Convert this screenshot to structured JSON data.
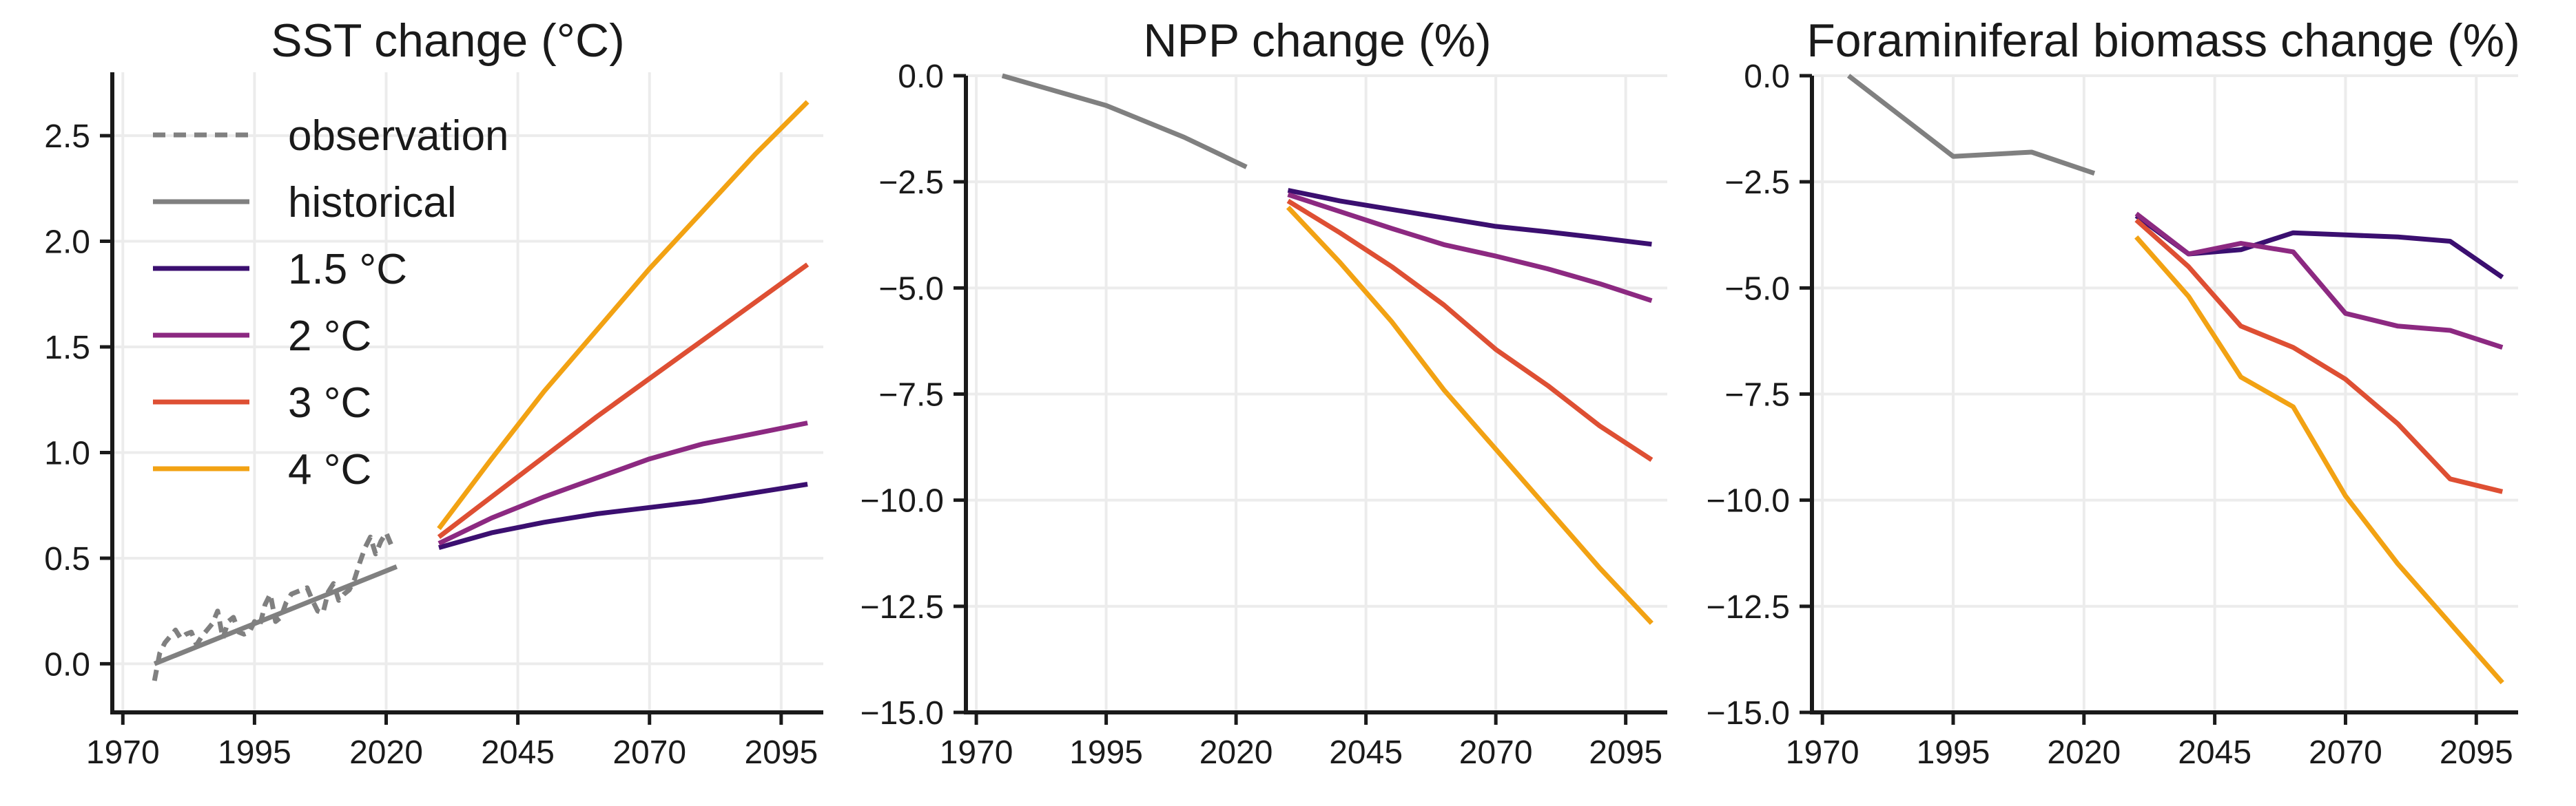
{
  "colors": {
    "observation": "#808080",
    "historical": "#808080",
    "s15": "#3b0f70",
    "s2": "#8c2981",
    "s3": "#de4f33",
    "s4": "#f2a213"
  },
  "legend": {
    "observation": "observation",
    "historical": "historical",
    "s15": "1.5 °C",
    "s2": "2 °C",
    "s3": "3 °C",
    "s4": "4 °C"
  },
  "chart_data": [
    {
      "type": "line",
      "title": "SST change (°C)",
      "xlabel": "",
      "ylabel": "",
      "xlim": [
        1968,
        2103
      ],
      "ylim": [
        -0.23,
        2.8
      ],
      "xticks": [
        1970,
        1995,
        2020,
        2045,
        2070,
        2095
      ],
      "yticks": [
        0.0,
        0.5,
        1.0,
        1.5,
        2.0,
        2.5
      ],
      "ytick_labels": [
        "0.0",
        "0.5",
        "1.0",
        "1.5",
        "2.0",
        "2.5"
      ],
      "grid": true,
      "legend_position": "top-left",
      "series": [
        {
          "name": "observation",
          "key": "observation",
          "dash": true,
          "x": [
            1976,
            1977,
            1978,
            1979,
            1980,
            1981,
            1982,
            1983,
            1984,
            1985,
            1986,
            1987,
            1988,
            1989,
            1990,
            1991,
            1992,
            1993,
            1994,
            1995,
            1996,
            1997,
            1998,
            1999,
            2000,
            2001,
            2002,
            2003,
            2004,
            2005,
            2006,
            2007,
            2008,
            2009,
            2010,
            2011,
            2012,
            2013,
            2014,
            2015,
            2016,
            2017,
            2018,
            2019,
            2020,
            2021
          ],
          "y": [
            -0.08,
            0.05,
            0.1,
            0.13,
            0.16,
            0.12,
            0.14,
            0.15,
            0.09,
            0.13,
            0.16,
            0.19,
            0.25,
            0.12,
            0.2,
            0.22,
            0.15,
            0.14,
            0.15,
            0.2,
            0.18,
            0.28,
            0.33,
            0.2,
            0.22,
            0.29,
            0.33,
            0.34,
            0.35,
            0.36,
            0.3,
            0.25,
            0.24,
            0.34,
            0.38,
            0.3,
            0.33,
            0.35,
            0.4,
            0.48,
            0.55,
            0.6,
            0.52,
            0.58,
            0.62,
            0.56
          ]
        },
        {
          "name": "historical",
          "key": "historical",
          "x": [
            1976,
            2022
          ],
          "y": [
            0.0,
            0.46
          ]
        },
        {
          "name": "1.5 °C",
          "key": "s15",
          "x": [
            2030,
            2040,
            2050,
            2060,
            2070,
            2080,
            2090,
            2100
          ],
          "y": [
            0.55,
            0.62,
            0.67,
            0.71,
            0.74,
            0.77,
            0.81,
            0.85
          ]
        },
        {
          "name": "2 °C",
          "key": "s2",
          "x": [
            2030,
            2040,
            2050,
            2060,
            2070,
            2080,
            2090,
            2100
          ],
          "y": [
            0.57,
            0.69,
            0.79,
            0.88,
            0.97,
            1.04,
            1.09,
            1.14
          ]
        },
        {
          "name": "3 °C",
          "key": "s3",
          "x": [
            2030,
            2040,
            2050,
            2060,
            2070,
            2080,
            2090,
            2100
          ],
          "y": [
            0.6,
            0.79,
            0.98,
            1.17,
            1.35,
            1.53,
            1.71,
            1.89
          ]
        },
        {
          "name": "4 °C",
          "key": "s4",
          "x": [
            2030,
            2040,
            2050,
            2060,
            2070,
            2080,
            2090,
            2100
          ],
          "y": [
            0.64,
            0.97,
            1.29,
            1.58,
            1.87,
            2.14,
            2.41,
            2.66
          ]
        }
      ]
    },
    {
      "type": "line",
      "title": "NPP change (%)",
      "xlabel": "",
      "ylabel": "",
      "xlim": [
        1968,
        2103
      ],
      "ylim": [
        -15.0,
        0.0
      ],
      "xticks": [
        1970,
        1995,
        2020,
        2045,
        2070,
        2095
      ],
      "yticks": [
        0.0,
        -2.5,
        -5.0,
        -7.5,
        -10.0,
        -12.5,
        -15.0
      ],
      "ytick_labels": [
        "0.0",
        "−2.5",
        "−5.0",
        "−7.5",
        "−10.0",
        "−12.5",
        "−15.0"
      ],
      "grid": true,
      "series": [
        {
          "name": "historical",
          "key": "historical",
          "x": [
            1975,
            1995,
            2010,
            2022
          ],
          "y": [
            0.0,
            -0.7,
            -1.45,
            -2.15
          ]
        },
        {
          "name": "1.5 °C",
          "key": "s15",
          "x": [
            2030,
            2040,
            2050,
            2060,
            2070,
            2080,
            2090,
            2100
          ],
          "y": [
            -2.7,
            -2.95,
            -3.15,
            -3.35,
            -3.55,
            -3.68,
            -3.82,
            -3.97
          ]
        },
        {
          "name": "2 °C",
          "key": "s2",
          "x": [
            2030,
            2040,
            2050,
            2060,
            2070,
            2080,
            2090,
            2100
          ],
          "y": [
            -2.8,
            -3.2,
            -3.6,
            -3.98,
            -4.25,
            -4.55,
            -4.9,
            -5.3
          ]
        },
        {
          "name": "3 °C",
          "key": "s3",
          "x": [
            2030,
            2040,
            2050,
            2060,
            2070,
            2080,
            2090,
            2100
          ],
          "y": [
            -2.95,
            -3.7,
            -4.5,
            -5.4,
            -6.45,
            -7.3,
            -8.25,
            -9.05
          ]
        },
        {
          "name": "4 °C",
          "key": "s4",
          "x": [
            2030,
            2040,
            2050,
            2060,
            2070,
            2080,
            2090,
            2100
          ],
          "y": [
            -3.1,
            -4.4,
            -5.8,
            -7.4,
            -8.8,
            -10.2,
            -11.6,
            -12.9
          ]
        }
      ]
    },
    {
      "type": "line",
      "title": "Foraminiferal biomass change (%)",
      "xlabel": "",
      "ylabel": "",
      "xlim": [
        1968,
        2103
      ],
      "ylim": [
        -15.0,
        0.0
      ],
      "xticks": [
        1970,
        1995,
        2020,
        2045,
        2070,
        2095
      ],
      "yticks": [
        0.0,
        -2.5,
        -5.0,
        -7.5,
        -10.0,
        -12.5,
        -15.0
      ],
      "ytick_labels": [
        "0.0",
        "−2.5",
        "−5.0",
        "−7.5",
        "−10.0",
        "−12.5",
        "−15.0"
      ],
      "grid": true,
      "series": [
        {
          "name": "historical",
          "key": "historical",
          "x": [
            1975,
            1995,
            2010,
            2022
          ],
          "y": [
            0.0,
            -1.9,
            -1.8,
            -2.3
          ]
        },
        {
          "name": "1.5 °C",
          "key": "s15",
          "x": [
            2030,
            2040,
            2050,
            2060,
            2070,
            2080,
            2090,
            2100
          ],
          "y": [
            -3.3,
            -4.2,
            -4.1,
            -3.7,
            -3.75,
            -3.8,
            -3.9,
            -4.75
          ]
        },
        {
          "name": "2 °C",
          "key": "s2",
          "x": [
            2030,
            2040,
            2050,
            2060,
            2070,
            2080,
            2090,
            2100
          ],
          "y": [
            -3.25,
            -4.2,
            -3.95,
            -4.15,
            -5.6,
            -5.9,
            -6.0,
            -6.4
          ]
        },
        {
          "name": "3 °C",
          "key": "s3",
          "x": [
            2030,
            2040,
            2050,
            2060,
            2070,
            2080,
            2090,
            2100
          ],
          "y": [
            -3.4,
            -4.5,
            -5.9,
            -6.4,
            -7.15,
            -8.2,
            -9.5,
            -9.8
          ]
        },
        {
          "name": "4 °C",
          "key": "s4",
          "x": [
            2030,
            2040,
            2050,
            2060,
            2070,
            2080,
            2090,
            2100
          ],
          "y": [
            -3.8,
            -5.2,
            -7.1,
            -7.8,
            -9.9,
            -11.5,
            -12.9,
            -14.3
          ]
        }
      ]
    }
  ]
}
